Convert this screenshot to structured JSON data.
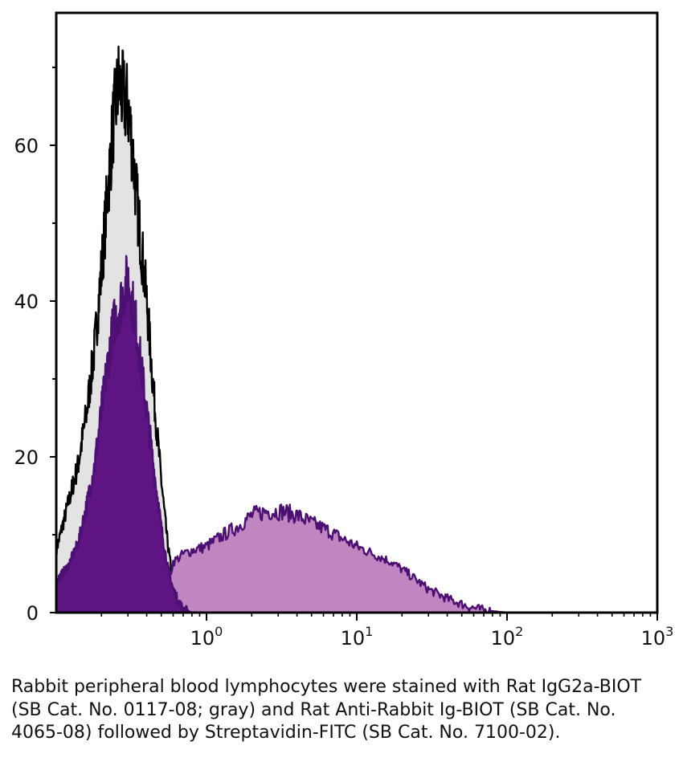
{
  "chart_data": {
    "type": "area",
    "title": "",
    "xlabel": "",
    "ylabel": "",
    "x_scale": "log",
    "xlim": [
      0.1,
      1000
    ],
    "ylim": [
      0,
      77
    ],
    "y_ticks": [
      0,
      20,
      40,
      60
    ],
    "y_tick_labels": [
      "0",
      "20",
      "40",
      "60"
    ],
    "x_ticks": [
      {
        "value": 1,
        "base": "10",
        "exp": "0"
      },
      {
        "value": 10,
        "base": "10",
        "exp": "1"
      },
      {
        "value": 100,
        "base": "10",
        "exp": "2"
      },
      {
        "value": 1000,
        "base": "10",
        "exp": "3"
      }
    ],
    "grid": false,
    "legend": "none",
    "series": [
      {
        "fill": "#e3e3e3",
        "stroke": "#000000",
        "x": [
          0.1,
          0.12,
          0.14,
          0.16,
          0.18,
          0.2,
          0.22,
          0.24,
          0.26,
          0.28,
          0.3,
          0.32,
          0.34,
          0.36,
          0.4,
          0.45,
          0.5,
          0.55,
          0.6,
          0.65,
          0.7
        ],
        "y": [
          8,
          14,
          19,
          26,
          34,
          44,
          54,
          63,
          68,
          66,
          65,
          60,
          54,
          49,
          40,
          27,
          17,
          9,
          4,
          1.5,
          0
        ]
      },
      {
        "fill": "#5e1583",
        "stroke": "#4c1072",
        "x": [
          0.1,
          0.12,
          0.14,
          0.16,
          0.18,
          0.2,
          0.22,
          0.24,
          0.26,
          0.28,
          0.3,
          0.32,
          0.34,
          0.36,
          0.4,
          0.45,
          0.5,
          0.55,
          0.6,
          0.65,
          0.7,
          0.8
        ],
        "y": [
          4,
          6,
          9,
          14,
          19,
          26,
          32,
          37,
          39,
          41,
          43,
          40,
          37,
          33,
          26,
          18,
          11,
          6,
          3,
          1.5,
          0.5,
          0
        ]
      },
      {
        "fill": "#bf86c2",
        "stroke": "#4c1072",
        "x": [
          0.5,
          0.6,
          0.7,
          0.8,
          1.0,
          1.3,
          1.6,
          2.0,
          2.5,
          3.2,
          4,
          5,
          6.5,
          8,
          10,
          13,
          17,
          22,
          30,
          40,
          55,
          70,
          100
        ],
        "y": [
          0,
          6.5,
          7.5,
          8,
          8.5,
          10,
          11,
          12.5,
          13,
          13,
          12.5,
          11.5,
          10.5,
          9.5,
          8.5,
          7.5,
          6.5,
          5,
          3,
          1.8,
          0.8,
          0.3,
          0
        ]
      }
    ]
  },
  "caption": "Rabbit peripheral blood lymphocytes were stained with Rat IgG2a-BIOT (SB Cat. No. 0117-08; gray) and Rat Anti-Rabbit Ig-BIOT (SB Cat. No. 4065-08) followed by Streptavidin-FITC (SB Cat. No. 7100-02)."
}
